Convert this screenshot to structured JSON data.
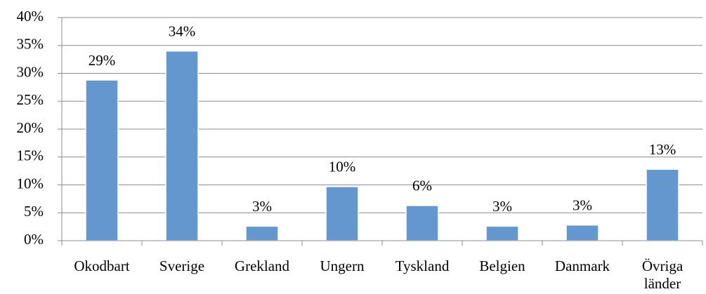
{
  "chart_data": {
    "type": "bar",
    "categories": [
      "Okodbart",
      "Sverige",
      "Grekland",
      "Ungern",
      "Tyskland",
      "Belgien",
      "Danmark",
      "Övriga länder"
    ],
    "values": [
      28.8,
      34,
      2.6,
      9.7,
      6.3,
      2.6,
      2.8,
      12.8
    ],
    "value_labels": [
      "29%",
      "34%",
      "3%",
      "10%",
      "6%",
      "3%",
      "3%",
      "13%"
    ],
    "color": "#6497cd",
    "ylim": [
      0,
      40
    ],
    "yticks": [
      {
        "value": 0,
        "label": "0%"
      },
      {
        "value": 5,
        "label": "5%"
      },
      {
        "value": 10,
        "label": "10%"
      },
      {
        "value": 15,
        "label": "15%"
      },
      {
        "value": 20,
        "label": "20%"
      },
      {
        "value": 25,
        "label": "25%"
      },
      {
        "value": 30,
        "label": "30%"
      },
      {
        "value": 35,
        "label": "35%"
      },
      {
        "value": 40,
        "label": "40%"
      }
    ],
    "grid": true
  }
}
